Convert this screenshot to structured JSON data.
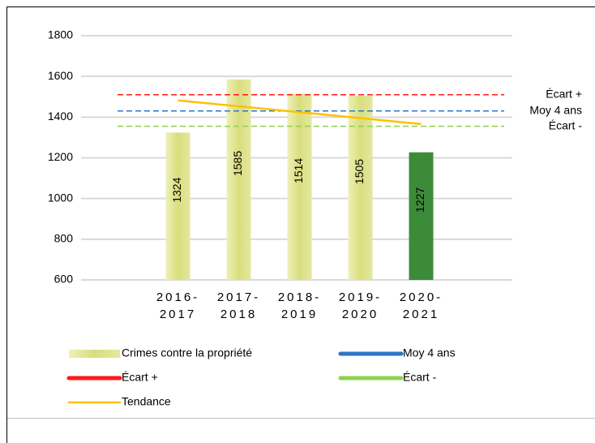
{
  "chart_data": {
    "type": "bar",
    "categories": [
      null,
      "2016-2017",
      "2017-2018",
      "2018-2019",
      "2019-2020",
      "2020-2021",
      null
    ],
    "series": [
      {
        "name": "Crimes contre la propriété",
        "color": "#d9de7c",
        "colors": [
          null,
          "#d9de7c",
          "#d9de7c",
          "#d9de7c",
          "#d9de7c",
          "#3b8b3b",
          null
        ],
        "values": [
          null,
          1324,
          1585,
          1514,
          1505,
          1227,
          null
        ]
      }
    ],
    "reference_lines": [
      {
        "name": "Moy 4 ans",
        "color": "#2e75c6",
        "value": 1430
      },
      {
        "name": "Écart +",
        "color": "#ff1a1a",
        "value": 1510
      },
      {
        "name": "Écart -",
        "color": "#8fd14f",
        "value": 1355
      }
    ],
    "trend": {
      "name": "Tendance",
      "color": "#ffc000",
      "values": [
        null,
        1482,
        1453,
        1424,
        1395,
        1366,
        null
      ]
    },
    "ylim": [
      600,
      1800
    ],
    "yticks": [
      600,
      800,
      1000,
      1200,
      1400,
      1600,
      1800
    ],
    "grid": true
  }
}
